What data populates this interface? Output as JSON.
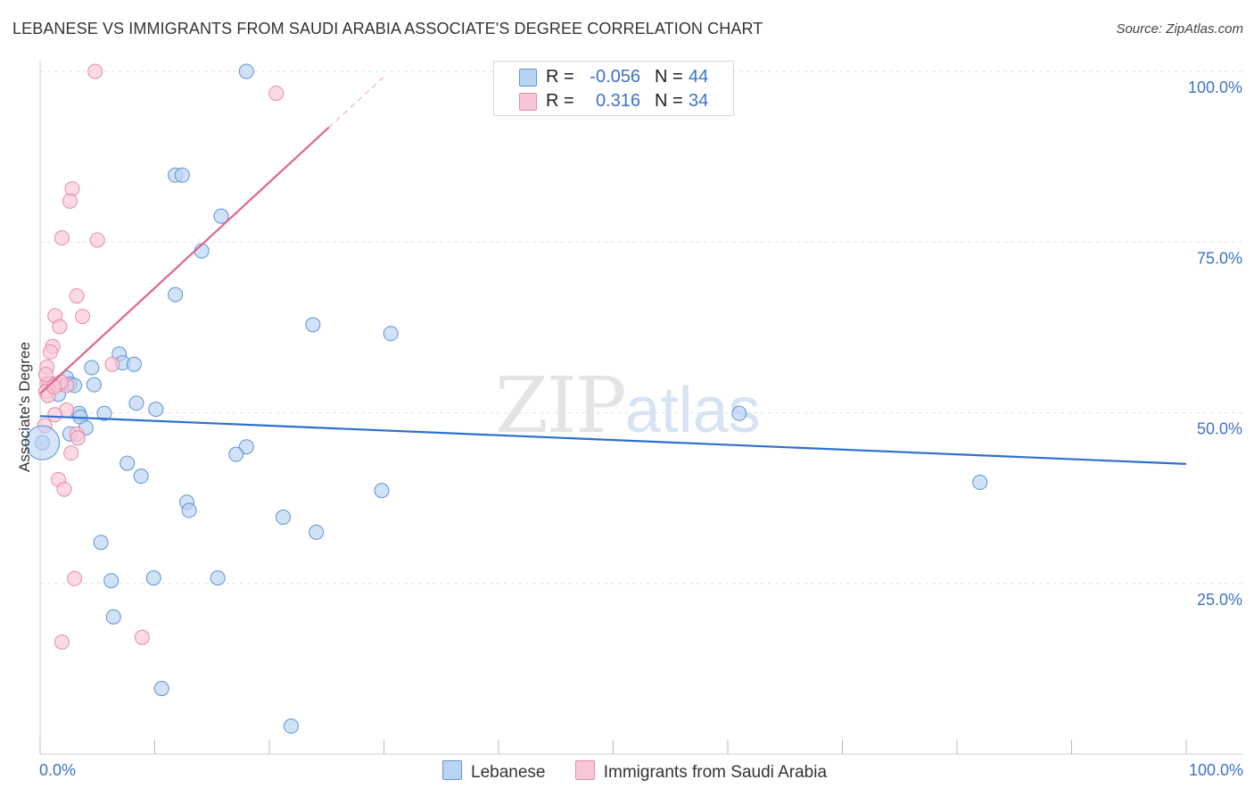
{
  "title": "LEBANESE VS IMMIGRANTS FROM SAUDI ARABIA ASSOCIATE'S DEGREE CORRELATION CHART",
  "source": "Source: ZipAtlas.com",
  "watermark": {
    "zip": "ZIP",
    "atlas": "atlas"
  },
  "legend": {
    "series": [
      {
        "name": "Lebanese",
        "r_label": "R =",
        "r_value": "-0.056",
        "n_label": "N =",
        "n_value": "44"
      },
      {
        "name": "Immigrants from Saudi Arabia",
        "r_label": "R =",
        "r_value": "0.316",
        "n_label": "N =",
        "n_value": "34"
      }
    ]
  },
  "colors": {
    "blue_fill": "#b9d3f2",
    "blue_stroke": "#5b93d6",
    "blue_line": "#2f6fce",
    "pink_fill": "#f9c6d5",
    "pink_stroke": "#e68aa6",
    "pink_line": "#e0648e",
    "axis_text": "#3b73c6",
    "grid": "#e2e2e2"
  },
  "chart_data": {
    "type": "scatter",
    "title": "LEBANESE VS IMMIGRANTS FROM SAUDI ARABIA ASSOCIATE'S DEGREE CORRELATION CHART",
    "xlabel": "",
    "ylabel": "Associate's Degree",
    "xlim": [
      0,
      100
    ],
    "ylim": [
      0,
      100
    ],
    "x_tick_labels": [
      "0.0%",
      "100.0%"
    ],
    "y_tick_labels": [
      "25.0%",
      "50.0%",
      "75.0%",
      "100.0%"
    ],
    "y_ticks": [
      25,
      50,
      75,
      100
    ],
    "grid": true,
    "series": [
      {
        "name": "Lebanese",
        "color": "blue",
        "r": -0.056,
        "n": 44,
        "trend": {
          "x": [
            0,
            100
          ],
          "y": [
            49.5,
            42.5
          ]
        },
        "points": [
          [
            18.0,
            100.0
          ],
          [
            11.8,
            84.8
          ],
          [
            12.4,
            84.8
          ],
          [
            15.8,
            78.8
          ],
          [
            14.1,
            73.7
          ],
          [
            11.8,
            67.3
          ],
          [
            23.8,
            62.9
          ],
          [
            30.6,
            61.6
          ],
          [
            6.9,
            58.6
          ],
          [
            7.2,
            57.3
          ],
          [
            8.2,
            57.1
          ],
          [
            4.5,
            56.6
          ],
          [
            2.3,
            55.1
          ],
          [
            1.0,
            54.2
          ],
          [
            4.7,
            54.1
          ],
          [
            2.6,
            54.2
          ],
          [
            1.6,
            52.7
          ],
          [
            8.4,
            51.4
          ],
          [
            10.1,
            50.5
          ],
          [
            3.4,
            49.9
          ],
          [
            5.6,
            49.9
          ],
          [
            3.5,
            49.4
          ],
          [
            4.0,
            47.8
          ],
          [
            2.6,
            46.9
          ],
          [
            0.2,
            45.6
          ],
          [
            18.0,
            45.0
          ],
          [
            17.1,
            43.9
          ],
          [
            7.6,
            42.6
          ],
          [
            8.8,
            40.7
          ],
          [
            29.8,
            38.6
          ],
          [
            12.8,
            36.9
          ],
          [
            13.0,
            35.7
          ],
          [
            21.2,
            34.7
          ],
          [
            24.1,
            32.5
          ],
          [
            5.3,
            31.0
          ],
          [
            6.2,
            25.4
          ],
          [
            9.9,
            25.8
          ],
          [
            15.5,
            25.8
          ],
          [
            6.4,
            20.1
          ],
          [
            10.6,
            9.6
          ],
          [
            21.9,
            4.1
          ],
          [
            61.0,
            49.9
          ],
          [
            82.0,
            39.8
          ],
          [
            3.0,
            54.0
          ]
        ]
      },
      {
        "name": "Immigrants from Saudi Arabia",
        "color": "pink",
        "r": 0.316,
        "n": 34,
        "trend": {
          "x": [
            0,
            25.2
          ],
          "y": [
            52.8,
            91.8
          ]
        },
        "trend_extension": {
          "x": [
            25.2,
            30.0
          ],
          "y": [
            91.8,
            99.2
          ]
        },
        "points": [
          [
            4.8,
            100.0
          ],
          [
            20.6,
            96.8
          ],
          [
            2.8,
            82.8
          ],
          [
            2.6,
            81.0
          ],
          [
            1.9,
            75.6
          ],
          [
            5.0,
            75.3
          ],
          [
            3.2,
            67.1
          ],
          [
            1.3,
            64.2
          ],
          [
            3.7,
            64.1
          ],
          [
            1.7,
            62.6
          ],
          [
            1.1,
            59.7
          ],
          [
            0.9,
            58.9
          ],
          [
            0.6,
            56.7
          ],
          [
            6.3,
            57.1
          ],
          [
            0.6,
            54.3
          ],
          [
            0.8,
            54.3
          ],
          [
            1.6,
            54.1
          ],
          [
            2.3,
            54.0
          ],
          [
            0.5,
            53.1
          ],
          [
            0.7,
            52.5
          ],
          [
            2.3,
            50.4
          ],
          [
            1.3,
            49.7
          ],
          [
            0.4,
            48.1
          ],
          [
            3.2,
            46.9
          ],
          [
            3.3,
            46.3
          ],
          [
            2.7,
            44.1
          ],
          [
            1.6,
            40.2
          ],
          [
            2.1,
            38.8
          ],
          [
            3.0,
            25.7
          ],
          [
            1.9,
            16.4
          ],
          [
            8.9,
            17.1
          ],
          [
            1.8,
            54.5
          ],
          [
            1.2,
            53.8
          ],
          [
            0.5,
            55.6
          ]
        ]
      }
    ]
  }
}
